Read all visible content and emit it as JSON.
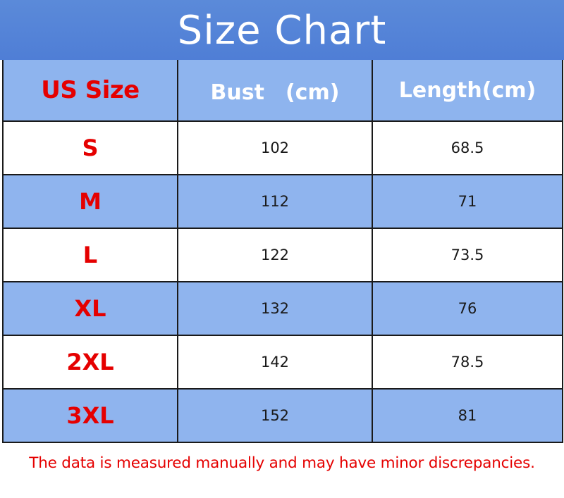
{
  "title": "Size Chart",
  "headers": {
    "size": "US Size",
    "bust": "Bust　(cm)",
    "length": "Length(cm)"
  },
  "rows": [
    {
      "size": "S",
      "bust": "102",
      "length": "68.5"
    },
    {
      "size": "M",
      "bust": "112",
      "length": "71"
    },
    {
      "size": "L",
      "bust": "122",
      "length": "73.5"
    },
    {
      "size": "XL",
      "bust": "132",
      "length": "76"
    },
    {
      "size": "2XL",
      "bust": "142",
      "length": "78.5"
    },
    {
      "size": "3XL",
      "bust": "152",
      "length": "81"
    }
  ],
  "note": "The data is measured manually and may have minor discrepancies.",
  "colors": {
    "title_bg": "#4f7ed6",
    "header_bg": "#8eb4ee",
    "row_blue": "#8fb4ee",
    "row_white": "#ffffff",
    "size_text": "#e50000",
    "note_text": "#e50000"
  }
}
